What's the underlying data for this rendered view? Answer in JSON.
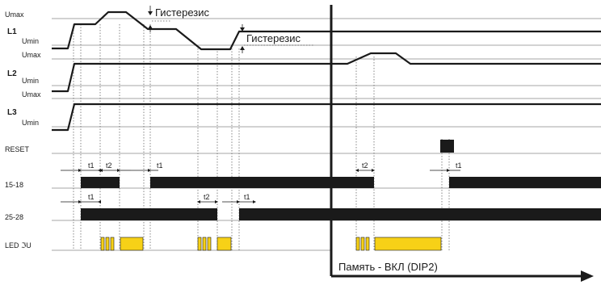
{
  "rows": {
    "umax": "Umax",
    "umin": "Umin",
    "l1": "L1",
    "l2": "L2",
    "l3": "L3",
    "reset": "RESET",
    "out1": "15-18",
    "out2": "25-28",
    "led": "LED ",
    "led_symbol": "ℑU"
  },
  "annotations": {
    "hysteresis": "Гистерезис",
    "memory": "Память - ВКЛ (DIP2)",
    "t1": "t1",
    "t2": "t2"
  },
  "colors": {
    "led_fill": "#f7d117",
    "bar_fill": "#1a1a1a",
    "line": "#1a1a1a"
  }
}
